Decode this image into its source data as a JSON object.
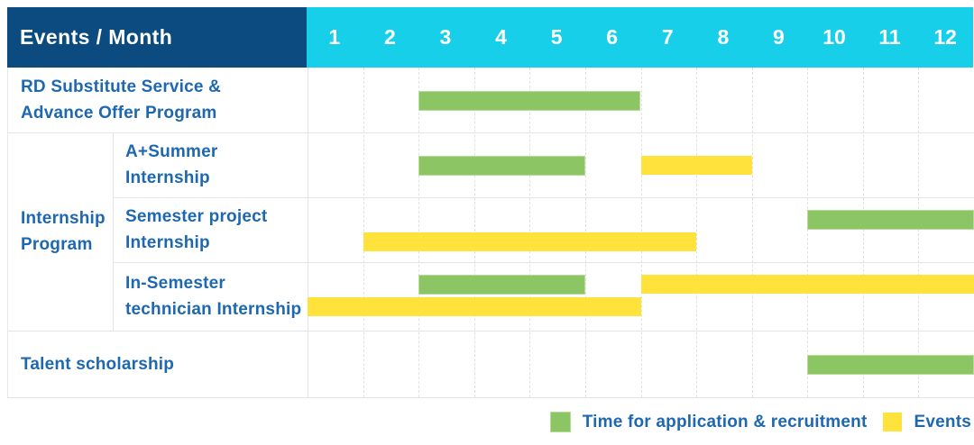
{
  "header": {
    "title": "Events / Month",
    "months": [
      "1",
      "2",
      "3",
      "4",
      "5",
      "6",
      "7",
      "8",
      "9",
      "10",
      "11",
      "12"
    ]
  },
  "group_label_lines": [
    "Internship",
    "Program"
  ],
  "rows": [
    {
      "name": "rd-substitute-service",
      "label_lines": [
        "RD Substitute Service &",
        "Advance Offer Program"
      ],
      "in_group": false,
      "lines": 1,
      "bars": [
        {
          "type": "application",
          "start_month": 3,
          "end_month": 6,
          "line": 1
        }
      ]
    },
    {
      "name": "a-plus-summer-internship",
      "label_lines": [
        "A+Summer",
        "Internship"
      ],
      "in_group": true,
      "lines": 1,
      "bars": [
        {
          "type": "application",
          "start_month": 3,
          "end_month": 5,
          "line": 1
        },
        {
          "type": "event",
          "start_month": 7,
          "end_month": 8,
          "line": 1
        }
      ]
    },
    {
      "name": "semester-project-internship",
      "label_lines": [
        "Semester project",
        "Internship"
      ],
      "in_group": true,
      "lines": 2,
      "bars": [
        {
          "type": "application",
          "start_month": 10,
          "end_month": 12,
          "line": 1
        },
        {
          "type": "event",
          "start_month": 2,
          "end_month": 7,
          "line": 2
        }
      ]
    },
    {
      "name": "in-semester-technician-internship",
      "label_lines": [
        "In-Semester",
        "technician Internship"
      ],
      "in_group": true,
      "lines": 2,
      "bars": [
        {
          "type": "application",
          "start_month": 3,
          "end_month": 5,
          "line": 1
        },
        {
          "type": "event",
          "start_month": 7,
          "end_month": 12,
          "line": 1
        },
        {
          "type": "event",
          "start_month": 1,
          "end_month": 6,
          "line": 2
        }
      ]
    },
    {
      "name": "talent-scholarship",
      "label_lines": [
        "Talent scholarship"
      ],
      "in_group": false,
      "lines": 1,
      "bars": [
        {
          "type": "application",
          "start_month": 10,
          "end_month": 12,
          "line": 1
        }
      ]
    }
  ],
  "legend": {
    "items": [
      {
        "type": "application",
        "label": "Time for application & recruitment"
      },
      {
        "type": "event",
        "label": "Events"
      }
    ]
  },
  "colors": {
    "header_bg": "#0B4B80",
    "months_bg": "#17CFE8",
    "header_text": "#FFFFFF",
    "label_text": "#1D68B0",
    "application_bar": "#8CC563",
    "event_bar": "#FFE33C",
    "grid_line": "#E4E4E4"
  },
  "chart_data": {
    "type": "bar",
    "subtype": "gantt",
    "title": "Events / Month",
    "xlabel": "Month",
    "x_ticks": [
      1,
      2,
      3,
      4,
      5,
      6,
      7,
      8,
      9,
      10,
      11,
      12
    ],
    "x_range": [
      1,
      12
    ],
    "grid": true,
    "legend_position": "bottom-right",
    "categories": [
      "RD Substitute Service & Advance Offer Program",
      "A+Summer Internship",
      "Semester project Internship",
      "In-Semester technician Internship",
      "Talent scholarship"
    ],
    "series": [
      {
        "name": "Time for application & recruitment",
        "color": "#8CC563",
        "spans": [
          {
            "category": "RD Substitute Service & Advance Offer Program",
            "start_month": 3,
            "end_month": 6
          },
          {
            "category": "A+Summer Internship",
            "start_month": 3,
            "end_month": 5
          },
          {
            "category": "Semester project Internship",
            "start_month": 10,
            "end_month": 12
          },
          {
            "category": "In-Semester technician Internship",
            "start_month": 3,
            "end_month": 5
          },
          {
            "category": "Talent scholarship",
            "start_month": 10,
            "end_month": 12
          }
        ]
      },
      {
        "name": "Events",
        "color": "#FFE33C",
        "spans": [
          {
            "category": "A+Summer Internship",
            "start_month": 7,
            "end_month": 8
          },
          {
            "category": "Semester project Internship",
            "start_month": 2,
            "end_month": 7
          },
          {
            "category": "In-Semester technician Internship",
            "start_month": 1,
            "end_month": 6
          },
          {
            "category": "In-Semester technician Internship",
            "start_month": 7,
            "end_month": 12
          },
          {
            "category": "Talent scholarship",
            "start_month": null,
            "end_month": null
          }
        ]
      }
    ]
  }
}
